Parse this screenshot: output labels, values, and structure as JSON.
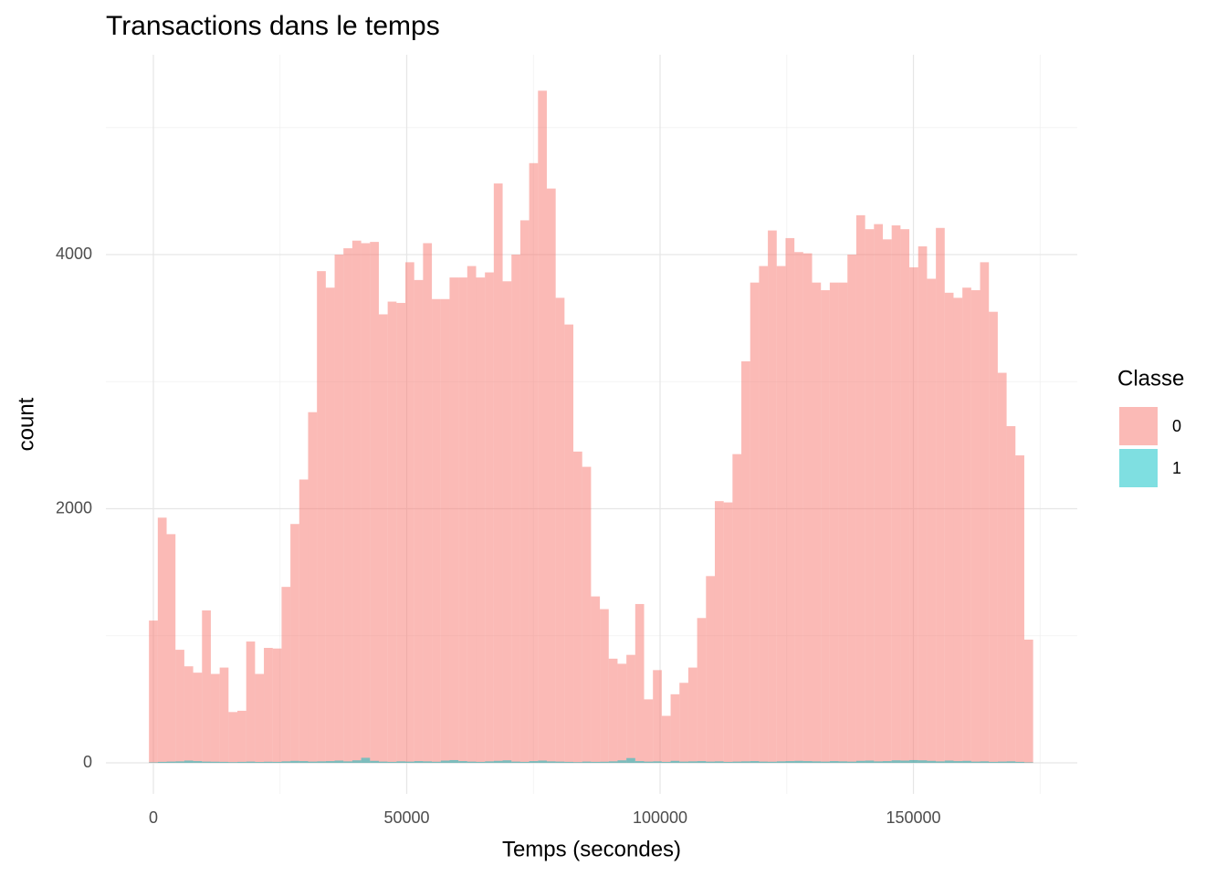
{
  "chart_data": {
    "type": "histogram",
    "title": "Transactions dans le temps",
    "x_label": "Temps (secondes)",
    "y_label": "count",
    "legend_title": "Classe",
    "legend_position": "right",
    "bins": [
      -873,
      872,
      2617,
      4362,
      6107,
      7852,
      9597,
      11342,
      13087,
      14832,
      16577,
      18322,
      20067,
      21812,
      23557,
      25302,
      27047,
      28792,
      30537,
      32282,
      34027,
      35772,
      37517,
      39262,
      41007,
      42752,
      44497,
      46242,
      47987,
      49732,
      51477,
      53222,
      54967,
      56712,
      58457,
      60202,
      61947,
      63692,
      65437,
      67182,
      68927,
      70672,
      72417,
      74162,
      75907,
      77652,
      79397,
      81142,
      82887,
      84632,
      86377,
      88122,
      89867,
      91612,
      93357,
      95102,
      96847,
      98592,
      100337,
      102082,
      103827,
      105572,
      107317,
      109062,
      110807,
      112552,
      114297,
      116042,
      117787,
      119532,
      121277,
      123022,
      124767,
      126512,
      128257,
      130002,
      131747,
      133492,
      135237,
      136982,
      138727,
      140472,
      142217,
      143962,
      145707,
      147452,
      149197,
      150942,
      152687,
      154432,
      156177,
      157922,
      159667,
      161412,
      163157,
      164902,
      166647,
      168392,
      170137,
      171882,
      173627
    ],
    "series": [
      {
        "name": "0",
        "color": "#F8766D",
        "values": [
          1120,
          1930,
          1800,
          890,
          760,
          710,
          1200,
          700,
          750,
          400,
          410,
          955,
          700,
          905,
          900,
          1385,
          1880,
          2230,
          2760,
          3870,
          3740,
          4000,
          4050,
          4110,
          4090,
          4100,
          3530,
          3630,
          3620,
          3940,
          3800,
          4090,
          3650,
          3650,
          3820,
          3820,
          3910,
          3820,
          3860,
          4560,
          3790,
          4000,
          4270,
          4720,
          5290,
          4520,
          3660,
          3450,
          2450,
          2330,
          1310,
          1210,
          820,
          780,
          850,
          1250,
          500,
          730,
          370,
          540,
          630,
          750,
          1140,
          1470,
          2060,
          2050,
          2430,
          3160,
          3780,
          3910,
          4190,
          3910,
          4130,
          4020,
          4010,
          3780,
          3720,
          3780,
          3780,
          4000,
          4310,
          4200,
          4240,
          4120,
          4230,
          4200,
          3900,
          4065,
          3810,
          4210,
          3700,
          3660,
          3740,
          3720,
          3940,
          3550,
          3070,
          2650,
          2420,
          970
        ]
      },
      {
        "name": "1",
        "color": "#00BFC4",
        "values": [
          4,
          8,
          10,
          12,
          18,
          14,
          10,
          9,
          8,
          6,
          8,
          10,
          7,
          9,
          8,
          12,
          16,
          14,
          10,
          12,
          14,
          18,
          12,
          20,
          40,
          16,
          10,
          8,
          12,
          10,
          14,
          12,
          9,
          18,
          22,
          14,
          10,
          8,
          12,
          16,
          20,
          10,
          8,
          14,
          18,
          12,
          10,
          8,
          6,
          10,
          8,
          9,
          12,
          20,
          38,
          14,
          10,
          12,
          8,
          16,
          10,
          12,
          14,
          10,
          12,
          8,
          10,
          12,
          14,
          10,
          9,
          12,
          14,
          16,
          14,
          12,
          10,
          14,
          12,
          10,
          16,
          18,
          12,
          14,
          20,
          18,
          22,
          20,
          16,
          12,
          18,
          14,
          16,
          10,
          12,
          8,
          10,
          12,
          8,
          4
        ]
      }
    ],
    "alpha": 0.5,
    "xlim": [
      -9369,
      182340
    ],
    "ylim": [
      -244,
      5573
    ],
    "xticks": [
      0,
      50000,
      100000,
      150000
    ],
    "yticks": [
      0,
      2000,
      4000
    ],
    "x_minor_grid": [
      25000,
      75000,
      125000,
      175000
    ],
    "y_minor_grid": [
      1000,
      3000,
      5000
    ],
    "grid": true
  }
}
